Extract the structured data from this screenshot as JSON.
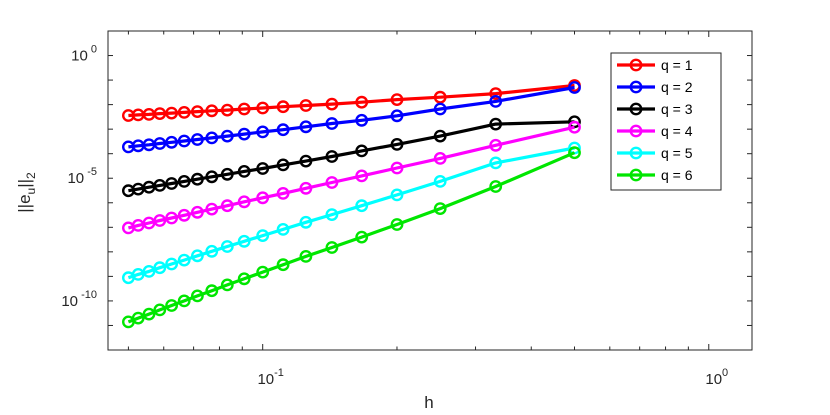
{
  "chart_data": {
    "type": "line",
    "x_scale": "log",
    "y_scale": "log",
    "xlabel": "h",
    "ylabel": "||e_u||_2",
    "xlim": [
      0.045,
      1.25
    ],
    "ylim": [
      1e-12,
      10.0
    ],
    "x_ticks": [
      {
        "base": "10",
        "exp": "-1",
        "value": 0.1
      },
      {
        "base": "10",
        "exp": "0",
        "value": 1
      }
    ],
    "y_ticks": [
      {
        "base": "10",
        "exp": "0",
        "value": 1
      },
      {
        "base": "10",
        "exp": "-5",
        "value": 1e-05
      },
      {
        "base": "10",
        "exp": "-10",
        "value": 1e-10
      }
    ],
    "x": [
      0.5,
      0.333,
      0.25,
      0.2,
      0.1667,
      0.1429,
      0.125,
      0.1111,
      0.1,
      0.0909,
      0.0833,
      0.0769,
      0.0714,
      0.0667,
      0.0625,
      0.0588,
      0.0556,
      0.0526,
      0.05
    ],
    "grid": false,
    "legend_position": "top-right",
    "series": [
      {
        "name": "q = 1",
        "color": "#ff0000",
        "values": [
          0.06,
          0.028,
          0.02,
          0.016,
          0.0125,
          0.0105,
          0.0092,
          0.0082,
          0.0073,
          0.0066,
          0.006,
          0.0056,
          0.0052,
          0.0048,
          0.0045,
          0.0043,
          0.004,
          0.0038,
          0.0036
        ]
      },
      {
        "name": "q = 2",
        "color": "#0000ff",
        "values": [
          0.05,
          0.0135,
          0.0066,
          0.0035,
          0.0023,
          0.0017,
          0.00125,
          0.00095,
          0.00077,
          0.00063,
          0.00052,
          0.00044,
          0.00038,
          0.00033,
          0.00029,
          0.00026,
          0.00023,
          0.00021,
          0.00019
        ]
      },
      {
        "name": "q = 3",
        "color": "#000000",
        "values": [
          0.002,
          0.0016,
          0.00052,
          0.00024,
          0.00013,
          7.7e-05,
          5e-05,
          3.5e-05,
          2.5e-05,
          1.9e-05,
          1.45e-05,
          1.14e-05,
          9.1e-06,
          7.4e-06,
          6.1e-06,
          5.1e-06,
          4.3e-06,
          3.6e-06,
          3.1e-06
        ]
      },
      {
        "name": "q = 4",
        "color": "#ff00ff",
        "values": [
          0.0012,
          0.00022,
          6.4e-05,
          2.6e-05,
          1.25e-05,
          6.7e-06,
          3.9e-06,
          2.4e-06,
          1.6e-06,
          1.1e-06,
          7.6e-07,
          5.5e-07,
          4.1e-07,
          3.1e-07,
          2.4e-07,
          1.9e-07,
          1.5e-07,
          1.2e-07,
          9.5e-08
        ]
      },
      {
        "name": "q = 5",
        "color": "#00ffff",
        "values": [
          0.00017,
          4.2e-05,
          7.4e-06,
          2.1e-06,
          7.6e-07,
          3.3e-07,
          1.6e-07,
          8.2e-08,
          4.6e-08,
          2.7e-08,
          1.65e-08,
          1.05e-08,
          6.9e-09,
          4.6e-09,
          3.2e-09,
          2.25e-09,
          1.6e-09,
          1.2e-09,
          8.8e-10
        ]
      },
      {
        "name": "q = 6",
        "color": "#00e600",
        "values": [
          0.00011,
          4.6e-06,
          5.8e-07,
          1.3e-07,
          4e-08,
          1.5e-08,
          6.5e-09,
          3e-09,
          1.5e-09,
          8e-10,
          4.5e-10,
          2.6e-10,
          1.6e-10,
          1e-10,
          6.5e-11,
          4.3e-11,
          2.9e-11,
          2e-11,
          1.4e-11
        ]
      }
    ]
  }
}
